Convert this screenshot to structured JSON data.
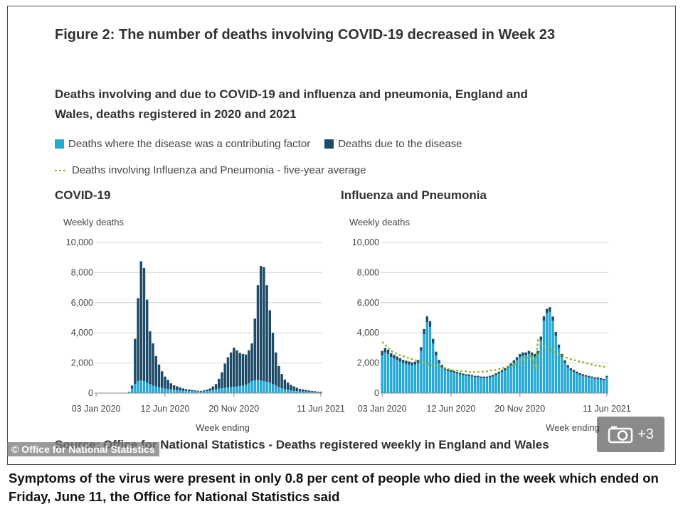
{
  "figure": {
    "title": "Figure 2: The number of deaths involving COVID-19 decreased in Week 23",
    "subtitle": "Deaths involving and due to COVID-19 and influenza and pneumonia, England and Wales, deaths registered in 2020 and 2021",
    "source": "Source: Office for National Statistics - Deaths registered weekly in England and Wales"
  },
  "legend": {
    "contributing": "Deaths where the disease was a contributing factor",
    "due": "Deaths due to the disease",
    "average": "Deaths involving Influenza and Pneumonia - five-year average"
  },
  "colors": {
    "contributing": "#27a9d6",
    "due": "#1d4a66",
    "average": "#8cb31a",
    "grid": "#d6d6d6"
  },
  "watermark": "© Office for National Statistics",
  "gallery": {
    "icon": "camera-icon",
    "count": "+3"
  },
  "caption": "Symptoms of the virus were present in only 0.8 per cent of people who died in the week which ended on Friday, June 11, the Office for National Statistics said",
  "chart_data": [
    {
      "type": "bar",
      "stacked": true,
      "title": "COVID-19",
      "ylabel": "Weekly deaths",
      "xlabel": "",
      "ylim": [
        0,
        10000
      ],
      "yticks": [
        0,
        2000,
        4000,
        6000,
        8000,
        10000
      ],
      "ytick_labels": [
        "0",
        "2,000",
        "4,000",
        "6,000",
        "8,000",
        "10,000"
      ],
      "xtick_labels": [
        "03 Jan 2020",
        "12 Jun 2020",
        "20 Nov 2020",
        "11 Jun 2021"
      ],
      "xtick_weeks": [
        0,
        23,
        46,
        75
      ],
      "grid": true,
      "series": [
        {
          "name": "Deaths where the disease was a contributing factor",
          "values": [
            0,
            0,
            0,
            0,
            0,
            0,
            0,
            0,
            0,
            0,
            0,
            100,
            300,
            600,
            800,
            850,
            800,
            700,
            600,
            500,
            450,
            400,
            350,
            300,
            280,
            250,
            220,
            200,
            180,
            160,
            150,
            140,
            130,
            120,
            110,
            100,
            110,
            130,
            160,
            200,
            250,
            300,
            330,
            360,
            380,
            400,
            420,
            440,
            470,
            500,
            560,
            650,
            800,
            850,
            860,
            840,
            800,
            760,
            700,
            600,
            500,
            400,
            320,
            260,
            220,
            180,
            160,
            140,
            120,
            110,
            100,
            90,
            80,
            70,
            60,
            60
          ]
        },
        {
          "name": "Deaths due to the disease",
          "values": [
            0,
            0,
            0,
            0,
            0,
            0,
            0,
            0,
            0,
            0,
            0,
            0,
            200,
            3000,
            5500,
            7900,
            7500,
            5500,
            3500,
            2800,
            2000,
            1500,
            1100,
            800,
            600,
            400,
            300,
            250,
            200,
            150,
            120,
            100,
            80,
            60,
            50,
            50,
            70,
            100,
            150,
            250,
            350,
            650,
            1050,
            1600,
            2000,
            2300,
            2600,
            2400,
            2200,
            2100,
            2000,
            2200,
            2500,
            4100,
            6300,
            7600,
            7550,
            6400,
            4800,
            3400,
            2200,
            1400,
            950,
            640,
            480,
            370,
            290,
            220,
            160,
            140,
            110,
            90,
            70,
            60,
            40,
            40
          ]
        }
      ]
    },
    {
      "type": "bar",
      "stacked": true,
      "title": "Influenza and Pneumonia",
      "ylabel": "Weekly deaths",
      "xlabel": "Week ending",
      "ylim": [
        0,
        10000
      ],
      "yticks": [
        0,
        2000,
        4000,
        6000,
        8000,
        10000
      ],
      "ytick_labels": [
        "0",
        "2,000",
        "4,000",
        "6,000",
        "8,000",
        "10,000"
      ],
      "xtick_labels": [
        "03 Jan 2020",
        "12 Jun 2020",
        "20 Nov 2020",
        "11 Jun 2021"
      ],
      "xtick_weeks": [
        0,
        23,
        46,
        75
      ],
      "grid": true,
      "series": [
        {
          "name": "Deaths where the disease was a contributing factor",
          "values": [
            2500,
            2700,
            2600,
            2400,
            2300,
            2200,
            2100,
            2000,
            1950,
            1900,
            1850,
            1900,
            2000,
            2800,
            3900,
            4700,
            4400,
            3300,
            2500,
            2000,
            1700,
            1550,
            1450,
            1400,
            1350,
            1300,
            1250,
            1200,
            1150,
            1150,
            1100,
            1050,
            1050,
            1000,
            1000,
            1000,
            1050,
            1100,
            1200,
            1300,
            1400,
            1500,
            1650,
            1800,
            2000,
            2200,
            2400,
            2500,
            2500,
            2600,
            2500,
            2400,
            2600,
            3500,
            4800,
            5300,
            5400,
            4800,
            3800,
            3000,
            2400,
            2000,
            1700,
            1500,
            1400,
            1300,
            1200,
            1150,
            1100,
            1050,
            1000,
            950,
            950,
            900,
            850,
            1050
          ]
        },
        {
          "name": "Deaths due to the disease",
          "values": [
            300,
            300,
            280,
            250,
            240,
            230,
            220,
            210,
            200,
            200,
            190,
            190,
            200,
            250,
            350,
            400,
            380,
            300,
            250,
            200,
            170,
            150,
            140,
            130,
            120,
            110,
            100,
            100,
            100,
            100,
            100,
            100,
            100,
            100,
            100,
            100,
            100,
            110,
            120,
            130,
            140,
            150,
            160,
            170,
            180,
            190,
            200,
            200,
            200,
            200,
            200,
            200,
            200,
            250,
            300,
            300,
            300,
            280,
            250,
            220,
            200,
            180,
            160,
            150,
            140,
            130,
            120,
            110,
            100,
            100,
            100,
            100,
            100,
            100,
            100,
            100
          ]
        },
        {
          "name": "Deaths involving Influenza and Pneumonia - five-year average",
          "type": "line",
          "values": [
            3400,
            3200,
            3000,
            2800,
            2700,
            2600,
            2500,
            2450,
            2400,
            2300,
            2250,
            2200,
            2100,
            2050,
            2000,
            1950,
            1900,
            1850,
            1800,
            1750,
            1700,
            1650,
            1600,
            1550,
            1500,
            1500,
            1450,
            1450,
            1450,
            1400,
            1400,
            1400,
            1400,
            1400,
            1450,
            1450,
            1500,
            1500,
            1550,
            1600,
            1650,
            1700,
            1750,
            1800,
            1850,
            1950,
            2050,
            2200,
            2300,
            2400,
            2500,
            1500,
            3500,
            3300,
            3100,
            3000,
            2900,
            2800,
            2700,
            2600,
            2500,
            2400,
            2300,
            2250,
            2200,
            2150,
            2100,
            2050,
            2000,
            1950,
            1900,
            1850,
            1800,
            1800,
            1750,
            1750
          ]
        }
      ]
    }
  ]
}
